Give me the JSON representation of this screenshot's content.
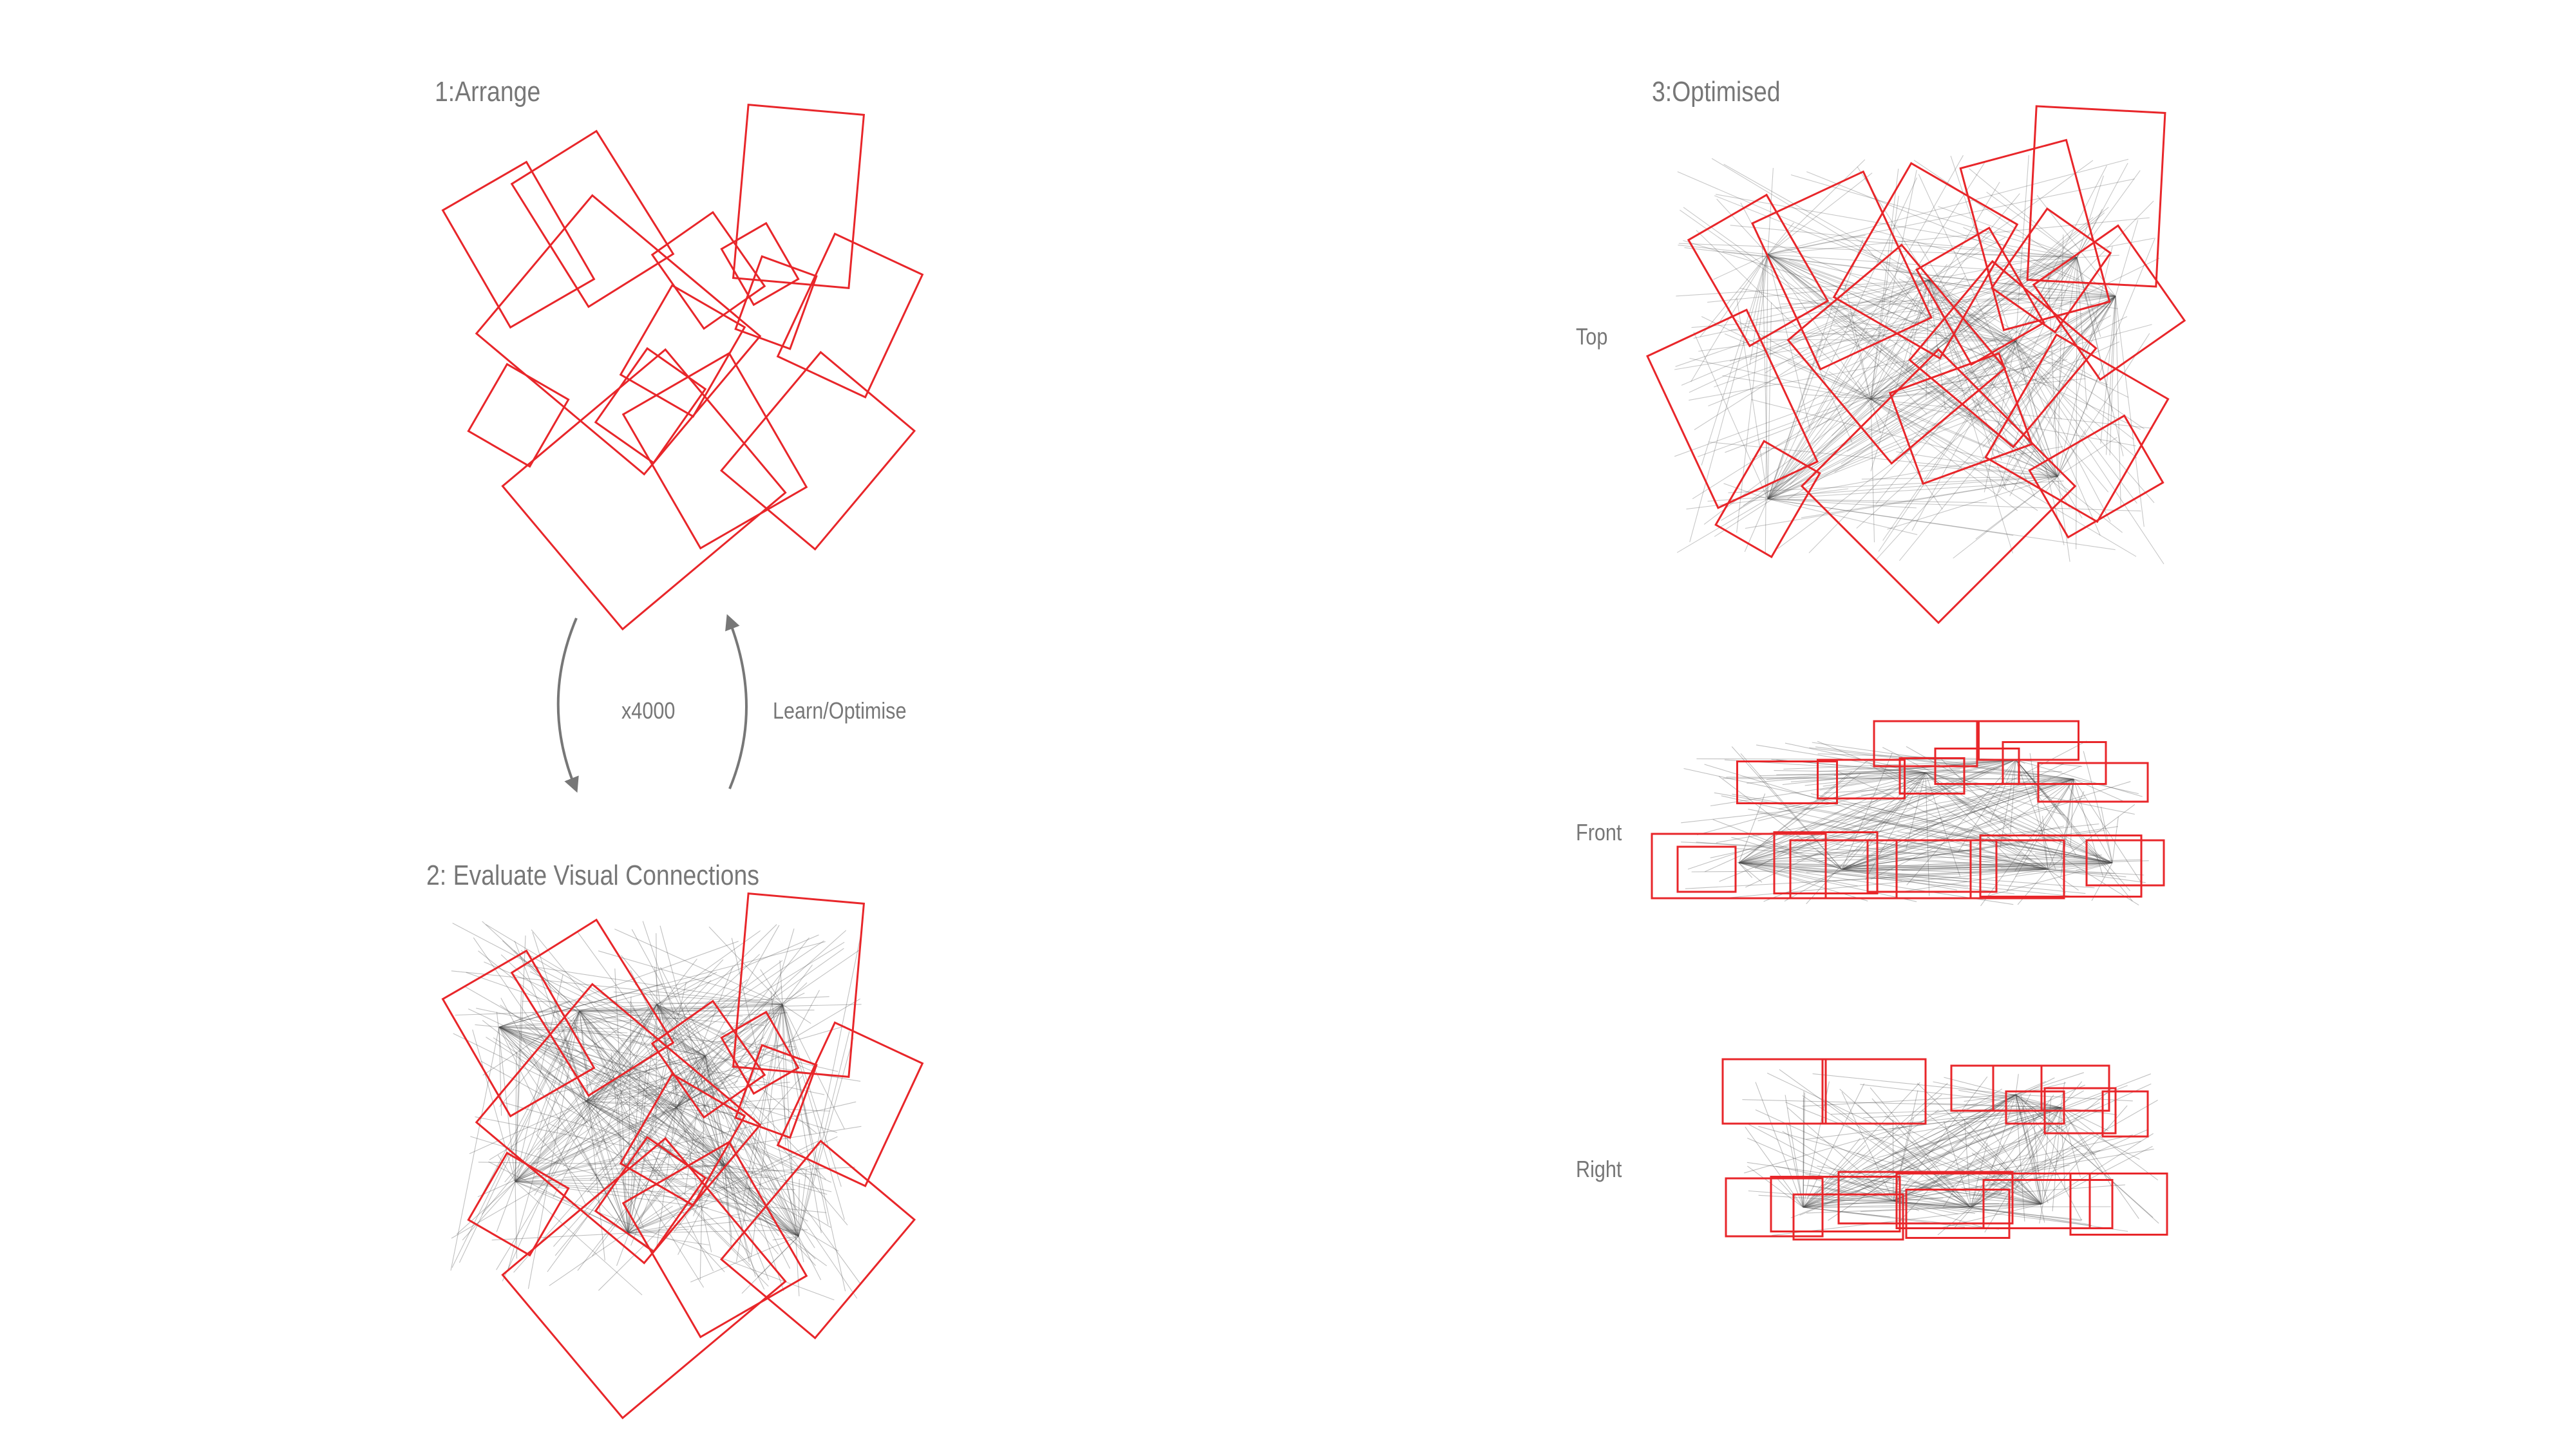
{
  "colors": {
    "box": "#e8262a",
    "line": "#4a4a4a",
    "text": "#777777",
    "arrow": "#777777",
    "background": "#ffffff"
  },
  "labels": {
    "step1": "1:Arrange",
    "step2": "2: Evaluate Visual Connections",
    "step3": "3:Optimised",
    "iterations": "x4000",
    "loop": "Learn/Optimise",
    "view_top": "Top",
    "view_front": "Front",
    "view_right": "Right"
  }
}
